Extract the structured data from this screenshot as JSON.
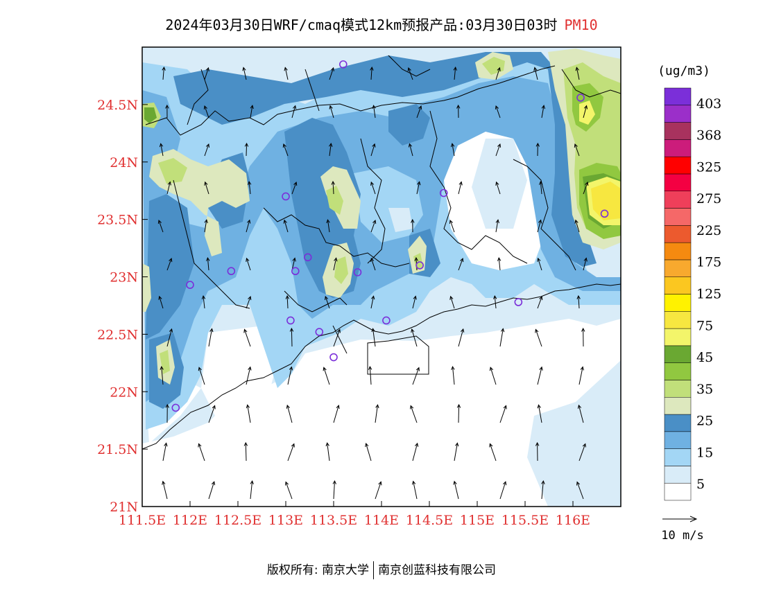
{
  "header": {
    "title": "2024年03月30日WRF/cmaq模式12km预报产品:03月30日03时",
    "variable": "PM10"
  },
  "map": {
    "lon_range": [
      111.5,
      116.5
    ],
    "lat_range": [
      21.0,
      25.0
    ],
    "lon_ticks": [
      "111.5E",
      "112E",
      "112.5E",
      "113E",
      "113.5E",
      "114E",
      "114.5E",
      "115E",
      "115.5E",
      "116E"
    ],
    "lat_ticks": [
      "21N",
      "21.5N",
      "22N",
      "22.5N",
      "23N",
      "23.5N",
      "24N",
      "24.5N"
    ],
    "tick_color": "#e03030",
    "stations": [
      {
        "lon": 113.6,
        "lat": 24.85
      },
      {
        "lon": 113.0,
        "lat": 23.7
      },
      {
        "lon": 114.65,
        "lat": 23.73
      },
      {
        "lon": 116.08,
        "lat": 24.56
      },
      {
        "lon": 116.33,
        "lat": 23.55
      },
      {
        "lon": 112.43,
        "lat": 23.05
      },
      {
        "lon": 113.23,
        "lat": 23.17
      },
      {
        "lon": 113.1,
        "lat": 23.05
      },
      {
        "lon": 112.0,
        "lat": 22.93
      },
      {
        "lon": 113.75,
        "lat": 23.04
      },
      {
        "lon": 114.4,
        "lat": 23.1
      },
      {
        "lon": 115.43,
        "lat": 22.78
      },
      {
        "lon": 113.05,
        "lat": 22.62
      },
      {
        "lon": 113.35,
        "lat": 22.52
      },
      {
        "lon": 114.05,
        "lat": 22.62
      },
      {
        "lon": 113.5,
        "lat": 22.3
      },
      {
        "lon": 111.85,
        "lat": 21.86
      }
    ],
    "station_color": "#7b2fd9"
  },
  "legend": {
    "unit": "(ug/m3)",
    "labels": [
      "403",
      "368",
      "325",
      "275",
      "225",
      "175",
      "125",
      "75",
      "45",
      "35",
      "25",
      "15",
      "5"
    ],
    "colors": [
      "#ffffff",
      "#d9ecf8",
      "#a3d6f5",
      "#6fb1e2",
      "#4a8fc6",
      "#dde8be",
      "#c1df7a",
      "#91c840",
      "#6aa832",
      "#f3f56a",
      "#f7e740",
      "#fff200",
      "#fbc720",
      "#f8a92e",
      "#f58a10",
      "#ec5a2e",
      "#f56868",
      "#ef3f5a",
      "#f40042",
      "#ff0000",
      "#cc1c7b",
      "#a8325e",
      "#9b2fc9",
      "#7b2fd9"
    ],
    "wind_label": "10 m/s"
  },
  "footer": {
    "copyright": "版权所有: 南京大学",
    "company": "南京创蓝科技有限公司"
  }
}
